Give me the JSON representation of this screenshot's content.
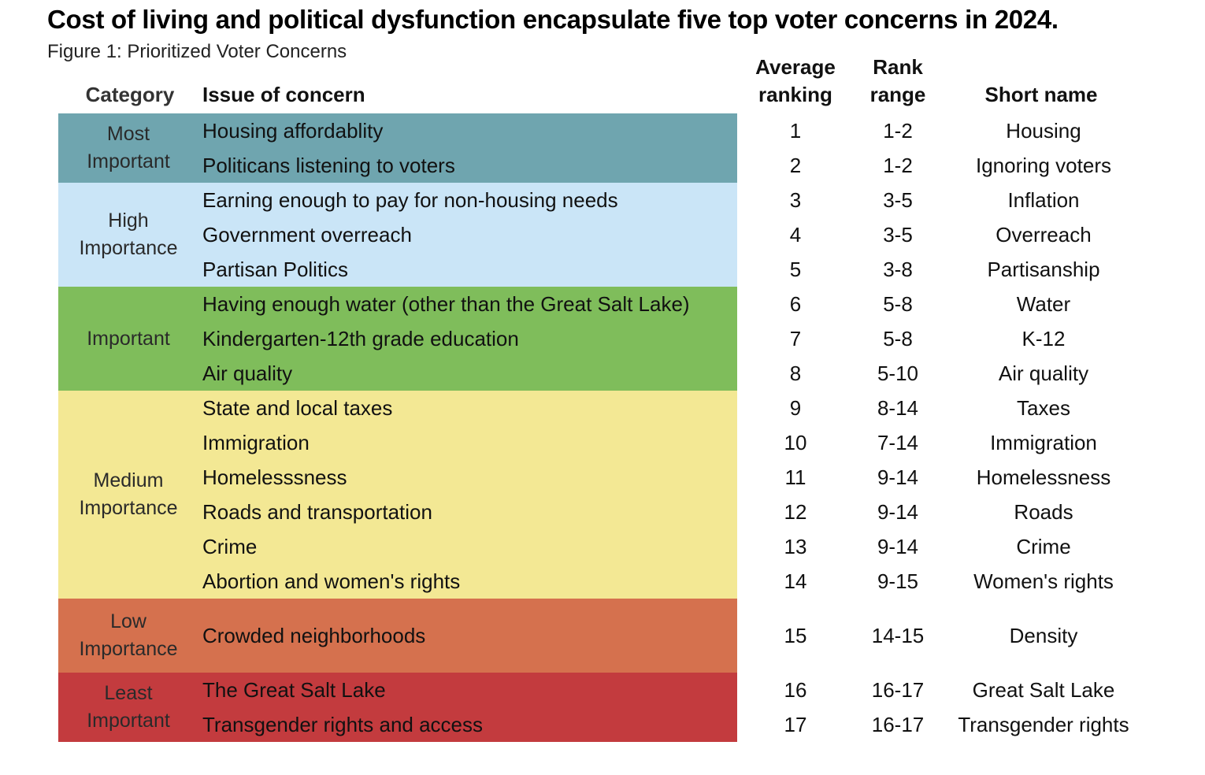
{
  "title": "Cost of living and political dysfunction encapsulate five top voter concerns in 2024.",
  "subtitle": "Figure 1: Prioritized Voter Concerns",
  "headers": {
    "category": "Category",
    "issue": "Issue of concern",
    "avg_line1": "Average",
    "avg_line2": "ranking",
    "range_line1": "Rank",
    "range_line2": "range",
    "short": "Short name"
  },
  "colors": {
    "most": "#6fa5af",
    "high": "#cae5f7",
    "important": "#7fbd5b",
    "medium": "#f3e894",
    "low": "#d5714e",
    "least": "#c33b3e"
  },
  "chart_data": {
    "type": "table",
    "columns": [
      "Category",
      "Issue of concern",
      "Average ranking",
      "Rank range",
      "Short name"
    ],
    "groups": [
      {
        "name": "Most Important",
        "color": "most",
        "rows": [
          {
            "issue": "Housing affordablity",
            "avg": "1",
            "range": "1-2",
            "short": "Housing"
          },
          {
            "issue": "Politicans listening to voters",
            "avg": "2",
            "range": "1-2",
            "short": "Ignoring voters"
          }
        ]
      },
      {
        "name": "High Importance",
        "color": "high",
        "rows": [
          {
            "issue": "Earning enough to pay for non-housing needs",
            "avg": "3",
            "range": "3-5",
            "short": "Inflation"
          },
          {
            "issue": "Government overreach",
            "avg": "4",
            "range": "3-5",
            "short": "Overreach"
          },
          {
            "issue": "Partisan Politics",
            "avg": "5",
            "range": "3-8",
            "short": "Partisanship"
          }
        ]
      },
      {
        "name": "Important",
        "color": "important",
        "rows": [
          {
            "issue": "Having enough water (other than the Great Salt Lake)",
            "avg": "6",
            "range": "5-8",
            "short": "Water"
          },
          {
            "issue": "Kindergarten-12th grade education",
            "avg": "7",
            "range": "5-8",
            "short": "K-12"
          },
          {
            "issue": "Air quality",
            "avg": "8",
            "range": "5-10",
            "short": "Air quality"
          }
        ]
      },
      {
        "name": "Medium Importance",
        "color": "medium",
        "rows": [
          {
            "issue": "State and local taxes",
            "avg": "9",
            "range": "8-14",
            "short": "Taxes"
          },
          {
            "issue": "Immigration",
            "avg": "10",
            "range": "7-14",
            "short": "Immigration"
          },
          {
            "issue": "Homelesssness",
            "avg": "11",
            "range": "9-14",
            "short": "Homelessness"
          },
          {
            "issue": "Roads and transportation",
            "avg": "12",
            "range": "9-14",
            "short": "Roads"
          },
          {
            "issue": "Crime",
            "avg": "13",
            "range": "9-14",
            "short": "Crime"
          },
          {
            "issue": "Abortion and women's rights",
            "avg": "14",
            "range": "9-15",
            "short": "Women's rights"
          }
        ]
      },
      {
        "name": "Low Importance",
        "color": "low",
        "rows": [
          {
            "issue": "Crowded neighborhoods",
            "avg": "15",
            "range": "14-15",
            "short": "Density"
          }
        ]
      },
      {
        "name": "Least Important",
        "color": "least",
        "rows": [
          {
            "issue": "The Great Salt Lake",
            "avg": "16",
            "range": "16-17",
            "short": "Great Salt Lake"
          },
          {
            "issue": "Transgender rights and access",
            "avg": "17",
            "range": "16-17",
            "short": "Transgender rights"
          }
        ]
      }
    ]
  }
}
